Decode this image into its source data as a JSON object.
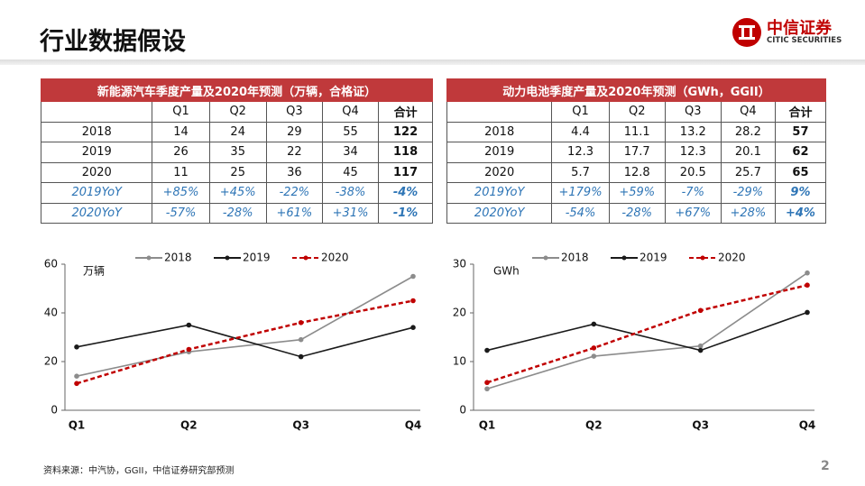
{
  "header": {
    "title": "行业数据假设",
    "logo_cn": "中信证券",
    "logo_en": "CITIC SECURITIES"
  },
  "tables": [
    {
      "title": "新能源汽车季度产量及2020年预测（万辆，合格证）",
      "header": [
        "Q1",
        "Q2",
        "Q3",
        "Q4",
        "合计"
      ],
      "rows": [
        [
          "2018",
          "14",
          "24",
          "29",
          "55",
          "122"
        ],
        [
          "2019",
          "26",
          "35",
          "22",
          "34",
          "118"
        ],
        [
          "2020",
          "11",
          "25",
          "36",
          "45",
          "117"
        ],
        [
          "2019YoY",
          "+85%",
          "+45%",
          "-22%",
          "-38%",
          "-4%"
        ],
        [
          "2020YoY",
          "-57%",
          "-28%",
          "+61%",
          "+31%",
          "-1%"
        ]
      ]
    },
    {
      "title": "动力电池季度产量及2020年预测（GWh，GGII）",
      "header": [
        "Q1",
        "Q2",
        "Q3",
        "Q4",
        "合计"
      ],
      "rows": [
        [
          "2018",
          "4.4",
          "11.1",
          "13.2",
          "28.2",
          "57"
        ],
        [
          "2019",
          "12.3",
          "17.7",
          "12.3",
          "20.1",
          "62"
        ],
        [
          "2020",
          "5.7",
          "12.8",
          "20.5",
          "25.7",
          "65"
        ],
        [
          "2019YoY",
          "+179%",
          "+59%",
          "-7%",
          "-29%",
          "9%"
        ],
        [
          "2020YoY",
          "-54%",
          "-28%",
          "+67%",
          "+28%",
          "+4%"
        ]
      ]
    }
  ],
  "chart_data": [
    {
      "type": "line",
      "y_label": "万辆",
      "categories": [
        "Q1",
        "Q2",
        "Q3",
        "Q4"
      ],
      "ylim": [
        0,
        60
      ],
      "yticks": [
        0,
        20,
        40,
        60
      ],
      "series": [
        {
          "name": "2018",
          "color": "#8c8c8c",
          "dashed": false,
          "values": [
            14,
            24,
            29,
            55
          ]
        },
        {
          "name": "2019",
          "color": "#1a1a1a",
          "dashed": false,
          "values": [
            26,
            35,
            22,
            34
          ]
        },
        {
          "name": "2020",
          "color": "#c00000",
          "dashed": true,
          "values": [
            11,
            25,
            36,
            45
          ]
        }
      ]
    },
    {
      "type": "line",
      "y_label": "GWh",
      "categories": [
        "Q1",
        "Q2",
        "Q3",
        "Q4"
      ],
      "ylim": [
        0,
        30
      ],
      "yticks": [
        0,
        10,
        20,
        30
      ],
      "series": [
        {
          "name": "2018",
          "color": "#8c8c8c",
          "dashed": false,
          "values": [
            4.4,
            11.1,
            13.2,
            28.2
          ]
        },
        {
          "name": "2019",
          "color": "#1a1a1a",
          "dashed": false,
          "values": [
            12.3,
            17.7,
            12.3,
            20.1
          ]
        },
        {
          "name": "2020",
          "color": "#c00000",
          "dashed": true,
          "values": [
            5.7,
            12.8,
            20.5,
            25.7
          ]
        }
      ]
    }
  ],
  "footer": {
    "source": "资料来源：中汽协，GGII，中信证券研究部预测",
    "page": "2"
  }
}
